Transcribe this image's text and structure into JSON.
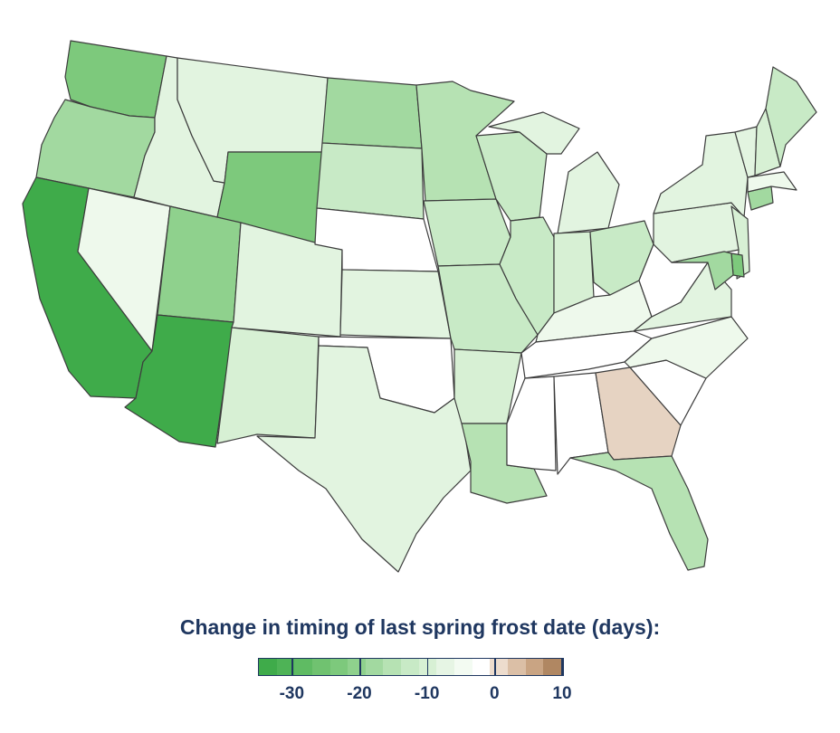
{
  "map": {
    "fill_scale": {
      "-30": "#3fab4a",
      "-25": "#5fbb63",
      "-20": "#7dc97c",
      "-17": "#8fd18d",
      "-15": "#a2d9a0",
      "-12": "#b6e2b3",
      "-10": "#c8eac6",
      "-7": "#d7f0d4",
      "-5": "#e2f4e0",
      "-2": "#eef9ec",
      "0": "#ffffff",
      "2": "#f3e6dc",
      "5": "#e6d3c2"
    },
    "states": [
      {
        "id": "WA",
        "value": -20
      },
      {
        "id": "OR",
        "value": -15
      },
      {
        "id": "CA",
        "value": -30
      },
      {
        "id": "NV",
        "value": -2
      },
      {
        "id": "ID",
        "value": -5
      },
      {
        "id": "MT",
        "value": -5
      },
      {
        "id": "WY",
        "value": -20
      },
      {
        "id": "UT",
        "value": -17
      },
      {
        "id": "AZ",
        "value": -30
      },
      {
        "id": "CO",
        "value": -5
      },
      {
        "id": "NM",
        "value": -7
      },
      {
        "id": "ND",
        "value": -15
      },
      {
        "id": "SD",
        "value": -10
      },
      {
        "id": "NE",
        "value": 0
      },
      {
        "id": "KS",
        "value": -5
      },
      {
        "id": "OK",
        "value": 0
      },
      {
        "id": "TX",
        "value": -5
      },
      {
        "id": "MN",
        "value": -12
      },
      {
        "id": "IA",
        "value": -10
      },
      {
        "id": "MO",
        "value": -10
      },
      {
        "id": "AR",
        "value": -7
      },
      {
        "id": "LA",
        "value": -12
      },
      {
        "id": "WI",
        "value": -10
      },
      {
        "id": "IL",
        "value": -10
      },
      {
        "id": "MI",
        "value": -5
      },
      {
        "id": "IN",
        "value": -7
      },
      {
        "id": "OH",
        "value": -10
      },
      {
        "id": "KY",
        "value": -2
      },
      {
        "id": "TN",
        "value": 0
      },
      {
        "id": "MS",
        "value": 0
      },
      {
        "id": "AL",
        "value": 0
      },
      {
        "id": "GA",
        "value": 5
      },
      {
        "id": "FL",
        "value": -12
      },
      {
        "id": "SC",
        "value": 0
      },
      {
        "id": "NC",
        "value": -2
      },
      {
        "id": "VA",
        "value": -5
      },
      {
        "id": "WV",
        "value": 0
      },
      {
        "id": "PA",
        "value": -5
      },
      {
        "id": "NY",
        "value": -5
      },
      {
        "id": "NJ",
        "value": -7
      },
      {
        "id": "DE",
        "value": -20
      },
      {
        "id": "MD",
        "value": -15
      },
      {
        "id": "CT",
        "value": -15
      },
      {
        "id": "MA",
        "value": -2
      },
      {
        "id": "VT",
        "value": -5
      },
      {
        "id": "NH",
        "value": -7
      },
      {
        "id": "ME",
        "value": -10
      }
    ]
  },
  "legend": {
    "title": "Change in timing of last spring frost date (days):",
    "swatches": [
      "#3fab4a",
      "#4eb356",
      "#5fbb63",
      "#70c270",
      "#7dc97c",
      "#8fd18d",
      "#a2d9a0",
      "#b6e2b3",
      "#c8eac6",
      "#d7f0d4",
      "#e6f5e4",
      "#f3fbf2",
      "#ffffff",
      "#eddccd",
      "#dbbfa6",
      "#c9a483",
      "#b08762"
    ],
    "ticks": [
      {
        "label": "-30",
        "value": -30
      },
      {
        "label": "-20",
        "value": -20
      },
      {
        "label": "-10",
        "value": -10
      },
      {
        "label": "0",
        "value": 0
      },
      {
        "label": "10",
        "value": 10
      }
    ],
    "range": [
      -35,
      10
    ]
  }
}
